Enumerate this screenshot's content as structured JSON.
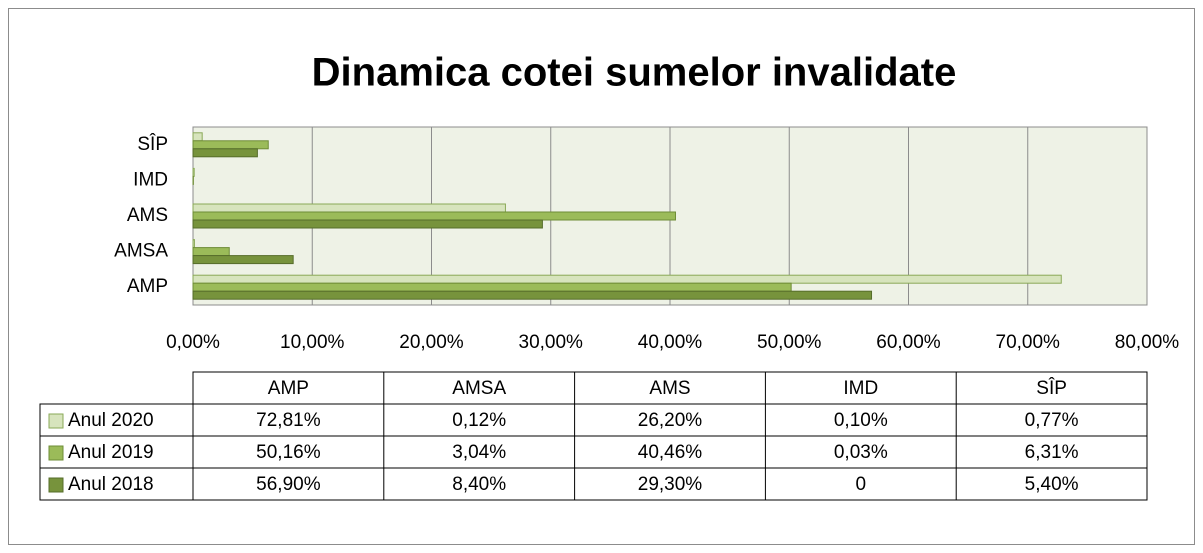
{
  "chart_data": {
    "type": "bar",
    "orientation": "horizontal",
    "title": "Dinamica cotei sumelor invalidate",
    "categories": [
      "AMP",
      "AMSA",
      "AMS",
      "IMD",
      "SÎP"
    ],
    "series": [
      {
        "name": "Anul 2020",
        "color": "#d7e4bd",
        "values": [
          72.81,
          0.12,
          26.2,
          0.1,
          0.77
        ],
        "value_labels": [
          "72,81%",
          "0,12%",
          "26,20%",
          "0,10%",
          "0,77%"
        ]
      },
      {
        "name": "Anul 2019",
        "color": "#9bbb59",
        "values": [
          50.16,
          3.04,
          40.46,
          0.03,
          6.31
        ],
        "value_labels": [
          "50,16%",
          "3,04%",
          "40,46%",
          "0,03%",
          "6,31%"
        ]
      },
      {
        "name": "Anul 2018",
        "color": "#77933c",
        "values": [
          56.9,
          8.4,
          29.3,
          0,
          5.4
        ],
        "value_labels": [
          "56,90%",
          "8,40%",
          "29,30%",
          "0",
          "5,40%"
        ]
      }
    ],
    "xlim": [
      0,
      80
    ],
    "xticks": [
      {
        "value": 0,
        "label": "0,00%"
      },
      {
        "value": 10,
        "label": "10,00%"
      },
      {
        "value": 20,
        "label": "20,00%"
      },
      {
        "value": 30,
        "label": "30,00%"
      },
      {
        "value": 40,
        "label": "40,00%"
      },
      {
        "value": 50,
        "label": "50,00%"
      },
      {
        "value": 60,
        "label": "60,00%"
      },
      {
        "value": 70,
        "label": "70,00%"
      },
      {
        "value": 80,
        "label": "80,00%"
      }
    ],
    "grid": true,
    "data_table": true
  }
}
